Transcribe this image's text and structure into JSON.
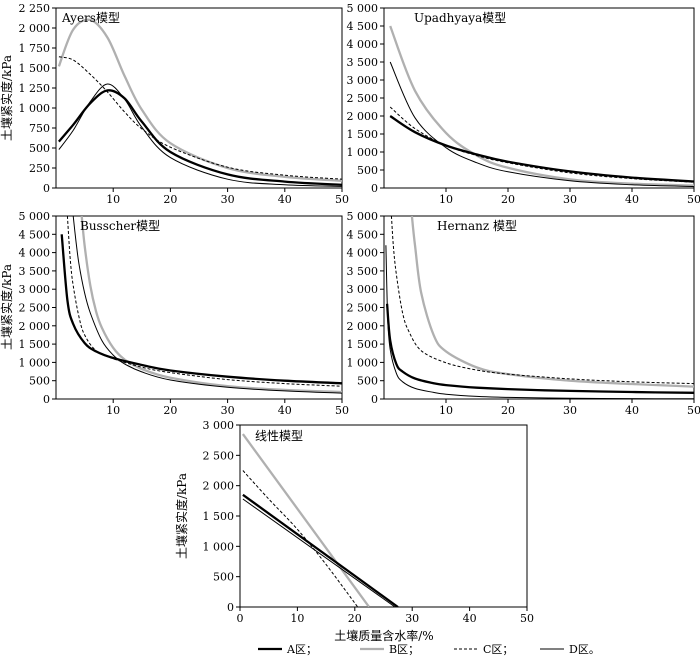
{
  "chart_data": {
    "type": "line",
    "xlabel": "土壤质量含水率/%",
    "ylabel": "土壤紧实度/kPa",
    "legend": [
      {
        "key": "A",
        "label": "A区；",
        "color": "#000000",
        "style": "thick"
      },
      {
        "key": "B",
        "label": "B区；",
        "color": "#b0b0b0",
        "style": "gray"
      },
      {
        "key": "C",
        "label": "C区；",
        "color": "#000000",
        "style": "dashed"
      },
      {
        "key": "D",
        "label": "D区。",
        "color": "#000000",
        "style": "thin"
      }
    ],
    "panels": [
      {
        "id": "ayers",
        "title": "Ayers模型",
        "xlim": [
          0,
          50
        ],
        "ylim": [
          0,
          2250
        ],
        "xticks": [
          "10",
          "20",
          "30",
          "40",
          "50"
        ],
        "yticks": [
          "0",
          "250",
          "500",
          "750",
          "1 000",
          "1 250",
          "1 500",
          "1 750",
          "2 000",
          "2 250"
        ],
        "series": [
          {
            "key": "A",
            "x": [
              0.5,
              3,
              6,
              9,
              12,
              15,
              20,
              30,
              40,
              50
            ],
            "y": [
              580,
              790,
              1060,
              1220,
              1120,
              830,
              450,
              170,
              80,
              40
            ]
          },
          {
            "key": "B",
            "x": [
              0.5,
              3,
              6,
              9,
              12,
              15,
              20,
              30,
              40,
              50
            ],
            "y": [
              1520,
              1980,
              2100,
              1880,
              1400,
              980,
              560,
              250,
              140,
              90
            ]
          },
          {
            "key": "C",
            "x": [
              0.5,
              3,
              6,
              9,
              12,
              15,
              20,
              30,
              40,
              50
            ],
            "y": [
              1640,
              1600,
              1420,
              1200,
              950,
              740,
              510,
              260,
              160,
              110
            ]
          },
          {
            "key": "D",
            "x": [
              0.5,
              3,
              6,
              9,
              12,
              15,
              20,
              30,
              40,
              50
            ],
            "y": [
              480,
              720,
              1080,
              1300,
              1110,
              760,
              380,
              110,
              40,
              20
            ]
          }
        ]
      },
      {
        "id": "upadhyaya",
        "title": "Upadhyaya模型",
        "xlim": [
          0,
          50
        ],
        "ylim": [
          0,
          5000
        ],
        "xticks": [
          "10",
          "20",
          "30",
          "40",
          "50"
        ],
        "yticks": [
          "0",
          "500",
          "1 000",
          "1 500",
          "2 000",
          "2 500",
          "3 000",
          "3 500",
          "4 000",
          "4 500",
          "5 000"
        ],
        "series": [
          {
            "key": "A",
            "x": [
              1,
              5,
              10,
              15,
              20,
              30,
              40,
              50
            ],
            "y": [
              2000,
              1550,
              1180,
              930,
              730,
              460,
              290,
              180
            ]
          },
          {
            "key": "B",
            "x": [
              1,
              5,
              10,
              15,
              20,
              30,
              40,
              50
            ],
            "y": [
              4500,
              2700,
              1530,
              900,
              560,
              240,
              120,
              70
            ]
          },
          {
            "key": "C",
            "x": [
              1,
              5,
              10,
              15,
              20,
              30,
              40,
              50
            ],
            "y": [
              2250,
              1650,
              1180,
              900,
              700,
              420,
              260,
              160
            ]
          },
          {
            "key": "D",
            "x": [
              1,
              5,
              10,
              15,
              20,
              30,
              40,
              50
            ],
            "y": [
              3500,
              1950,
              1120,
              700,
              450,
              200,
              90,
              40
            ]
          }
        ]
      },
      {
        "id": "busscher",
        "title": "Busscher模型",
        "xlim": [
          0,
          50
        ],
        "ylim": [
          0,
          5000
        ],
        "xticks": [
          "10",
          "20",
          "30",
          "40",
          "50"
        ],
        "yticks": [
          "0",
          "500",
          "1 000",
          "1 500",
          "2 000",
          "2 500",
          "3 000",
          "3 500",
          "4 000",
          "4 500",
          "5 000"
        ],
        "series": [
          {
            "key": "A",
            "x": [
              1,
              2,
              3,
              5,
              7,
              10,
              15,
              20,
              30,
              40,
              50
            ],
            "y": [
              4500,
              2700,
              2050,
              1530,
              1300,
              1120,
              930,
              780,
              610,
              500,
              430
            ]
          },
          {
            "key": "B",
            "x": [
              4.5,
              5,
              6,
              7,
              8,
              10,
              12,
              15,
              20,
              30,
              40,
              50
            ],
            "y": [
              5000,
              4200,
              3100,
              2400,
              1950,
              1400,
              1080,
              820,
              580,
              350,
              250,
              190
            ]
          },
          {
            "key": "C",
            "x": [
              2,
              2.5,
              3,
              4,
              5,
              7,
              10,
              15,
              20,
              30,
              40,
              50
            ],
            "y": [
              5000,
              3800,
              3100,
              2250,
              1750,
              1320,
              1100,
              870,
              720,
              530,
              420,
              350
            ]
          },
          {
            "key": "D",
            "x": [
              3,
              3.5,
              4,
              5,
              6,
              8,
              10,
              12,
              15,
              20,
              30,
              40,
              50
            ],
            "y": [
              5000,
              4300,
              3700,
              2900,
              2350,
              1600,
              1200,
              960,
              740,
              520,
              320,
              220,
              160
            ]
          }
        ]
      },
      {
        "id": "hernanz",
        "title": "Hernanz 模型",
        "xlim": [
          0,
          50
        ],
        "ylim": [
          0,
          5000
        ],
        "xticks": [
          "10",
          "20",
          "30",
          "40",
          "50"
        ],
        "yticks": [
          "0",
          "500",
          "1 000",
          "1 500",
          "2 000",
          "2 500",
          "3 000",
          "3 500",
          "4 000",
          "4 500",
          "5 000"
        ],
        "series": [
          {
            "key": "A",
            "x": [
              0.5,
              1,
              2,
              3,
              5,
              8,
              10,
              15,
              20,
              30,
              40,
              50
            ],
            "y": [
              2600,
              1600,
              950,
              750,
              560,
              430,
              380,
              310,
              270,
              220,
              190,
              170
            ]
          },
          {
            "key": "B",
            "x": [
              4.5,
              5,
              6,
              8,
              10,
              15,
              20,
              30,
              40,
              50
            ],
            "y": [
              5000,
              4200,
              2900,
              1750,
              1300,
              860,
              680,
              500,
              410,
              340
            ]
          },
          {
            "key": "C",
            "x": [
              1.2,
              1.5,
              2,
              3,
              4,
              6,
              10,
              15,
              20,
              30,
              40,
              50
            ],
            "y": [
              5000,
              4200,
              3400,
              2350,
              1850,
              1320,
              990,
              790,
              680,
              550,
              470,
              420
            ]
          },
          {
            "key": "D",
            "x": [
              0.3,
              0.6,
              1,
              2,
              3,
              5,
              8,
              10,
              15,
              20,
              30,
              40,
              50
            ],
            "y": [
              4200,
              2200,
              1350,
              700,
              470,
              290,
              180,
              130,
              70,
              45,
              20,
              10,
              5
            ]
          }
        ]
      },
      {
        "id": "linear",
        "title": "线性模型",
        "xlim": [
          0,
          50
        ],
        "ylim": [
          0,
          3000
        ],
        "xticks": [
          "0",
          "10",
          "20",
          "30",
          "40",
          "50"
        ],
        "yticks": [
          "0",
          "500",
          "1 000",
          "1 500",
          "2 000",
          "2 500",
          "3 000"
        ],
        "series": [
          {
            "key": "A",
            "x": [
              0.5,
              27.5
            ],
            "y": [
              1850,
              0
            ]
          },
          {
            "key": "B",
            "x": [
              0.5,
              22.5
            ],
            "y": [
              2850,
              0
            ]
          },
          {
            "key": "C",
            "x": [
              0.5,
              5,
              10,
              15,
              20.5
            ],
            "y": [
              2250,
              1780,
              1280,
              700,
              0
            ]
          },
          {
            "key": "D",
            "x": [
              0.5,
              27
            ],
            "y": [
              1780,
              0
            ]
          }
        ]
      }
    ]
  }
}
